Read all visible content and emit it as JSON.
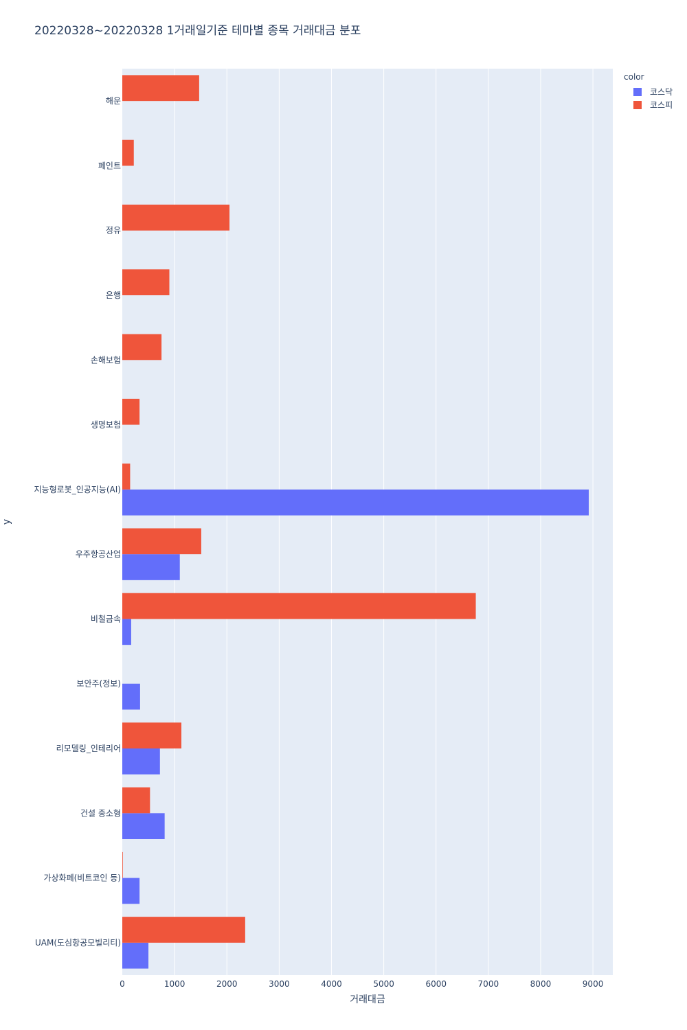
{
  "chart_data": {
    "type": "bar",
    "orientation": "horizontal",
    "barmode": "group",
    "title": "20220328~20220328 1거래일기준 테마별 종목 거래대금 분포",
    "xlabel": "거래대금",
    "ylabel": "y",
    "xlim": [
      0,
      9380
    ],
    "xticks": [
      0,
      1000,
      2000,
      3000,
      4000,
      5000,
      6000,
      7000,
      8000,
      9000
    ],
    "grid": true,
    "legend": {
      "title": "color",
      "position": "top-right"
    },
    "categories": [
      "해운",
      "페인트",
      "정유",
      "은행",
      "손해보험",
      "생명보험",
      "지능형로봇_인공지능(AI)",
      "우주항공산업",
      "비철금속",
      "보안주(정보)",
      "리모델링_인테리어",
      "건설 중소형",
      "가상화폐(비트코인 등)",
      "UAM(도심항공모빌리티)"
    ],
    "series": [
      {
        "name": "코스닥",
        "color": "#636efa",
        "values": [
          0,
          0,
          0,
          0,
          0,
          0,
          8920,
          1100,
          170,
          340,
          720,
          810,
          330,
          500
        ]
      },
      {
        "name": "코스피",
        "color": "#ef553b",
        "values": [
          1470,
          220,
          2050,
          900,
          750,
          330,
          150,
          1510,
          6760,
          0,
          1130,
          530,
          10,
          2350
        ]
      }
    ]
  }
}
